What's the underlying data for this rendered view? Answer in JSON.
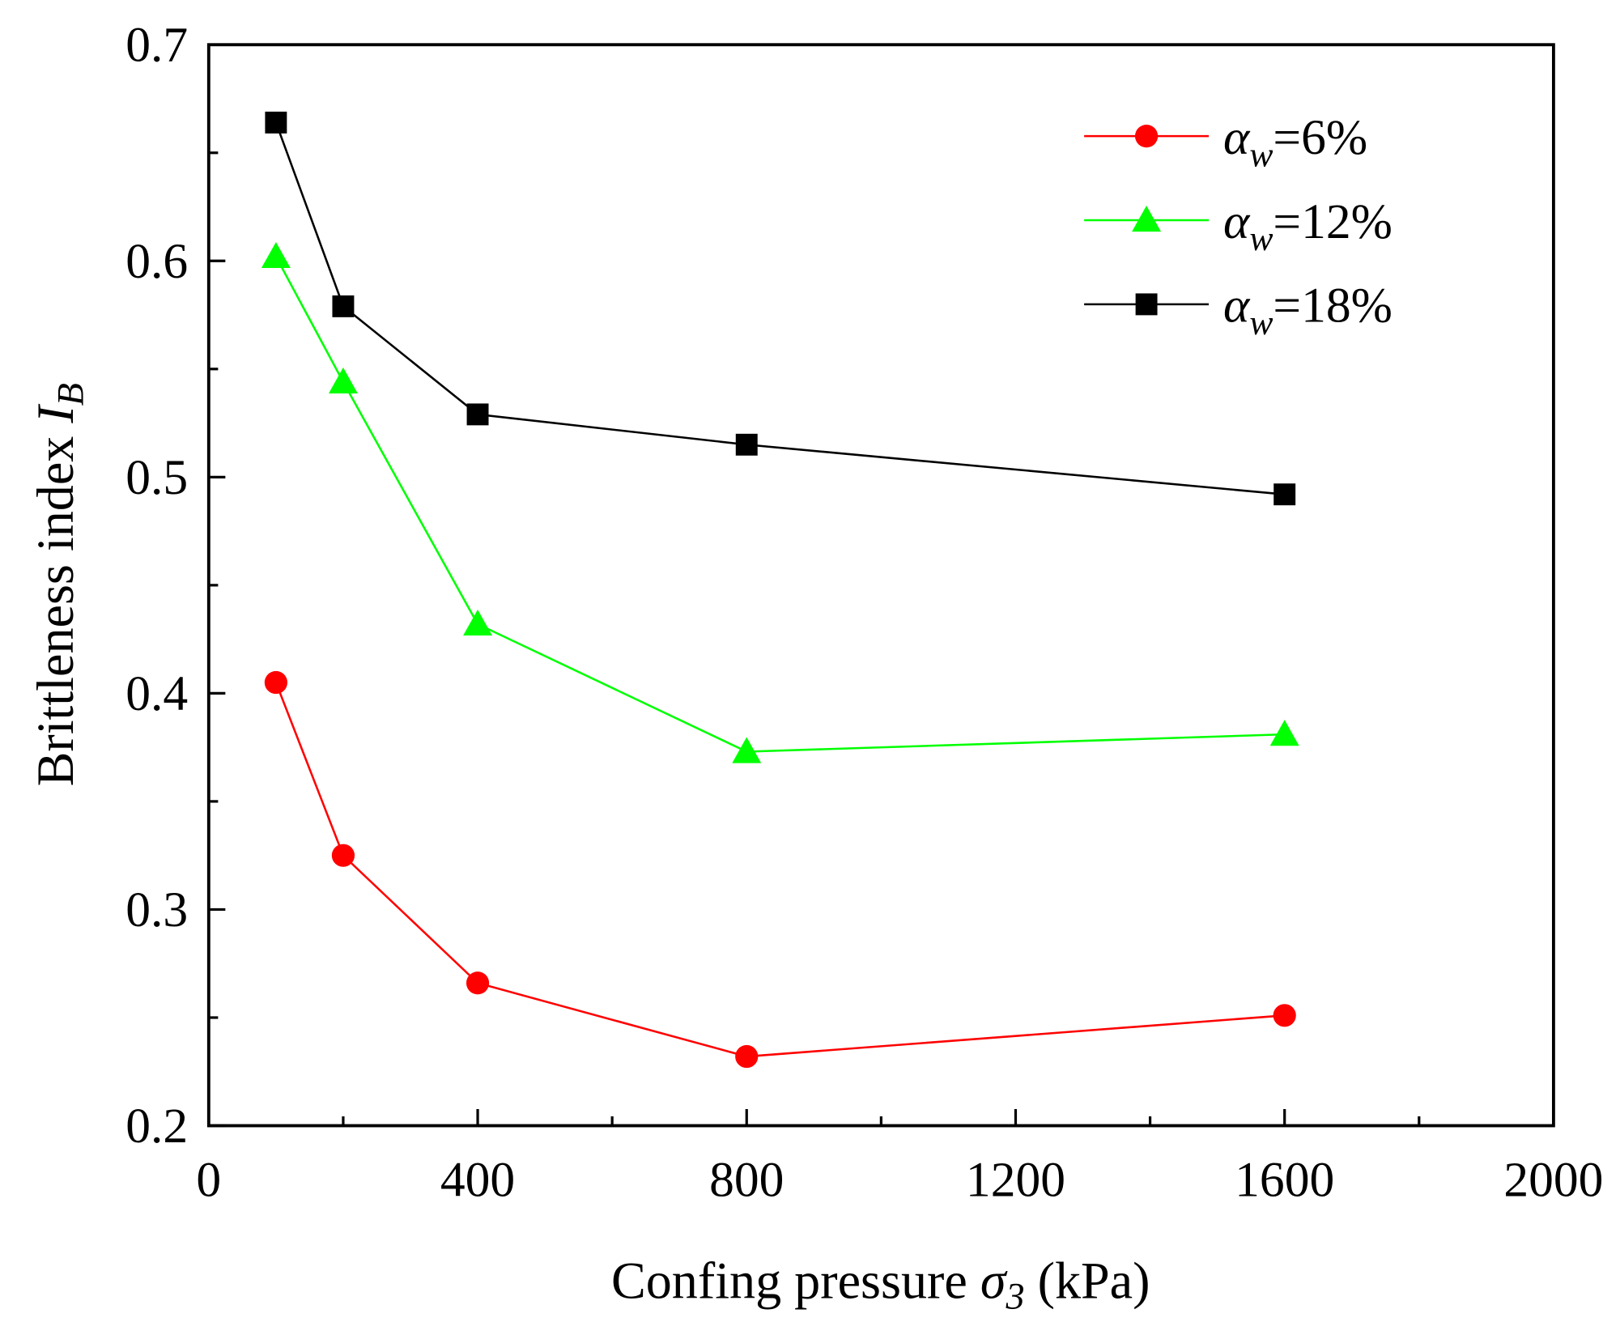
{
  "chart_data": {
    "type": "line",
    "title": "",
    "xlabel": {
      "text": "Confing pressure ",
      "symbol": "σ",
      "sub": "3",
      "unit": " (kPa)"
    },
    "ylabel": {
      "text": "Brittleness index ",
      "symbol": "I",
      "sub": "B"
    },
    "xlim": [
      0,
      2000
    ],
    "ylim": [
      0.2,
      0.7
    ],
    "xticks": [
      "0",
      "400",
      "800",
      "1200",
      "1600",
      "2000"
    ],
    "xtick_values": [
      0,
      400,
      800,
      1200,
      1600,
      2000
    ],
    "yticks": [
      "0.2",
      "0.3",
      "0.4",
      "0.5",
      "0.6",
      "0.7"
    ],
    "ytick_values": [
      0.2,
      0.3,
      0.4,
      0.5,
      0.6,
      0.7
    ],
    "grid": false,
    "legend_position": "top-right",
    "x": [
      100,
      200,
      400,
      800,
      1600
    ],
    "series": [
      {
        "name": "αw=6%",
        "symbol": "α",
        "sub": "w",
        "suffix": "=6%",
        "color": "#ff0000",
        "marker": "circle",
        "values": [
          0.405,
          0.325,
          0.266,
          0.232,
          0.251
        ]
      },
      {
        "name": "αw=12%",
        "symbol": "α",
        "sub": "w",
        "suffix": "=12%",
        "color": "#00ff00",
        "marker": "triangle",
        "values": [
          0.602,
          0.544,
          0.432,
          0.373,
          0.381
        ]
      },
      {
        "name": "αw=18%",
        "symbol": "α",
        "sub": "w",
        "suffix": "=18%",
        "color": "#000000",
        "marker": "square",
        "values": [
          0.664,
          0.579,
          0.529,
          0.515,
          0.492
        ]
      }
    ]
  }
}
